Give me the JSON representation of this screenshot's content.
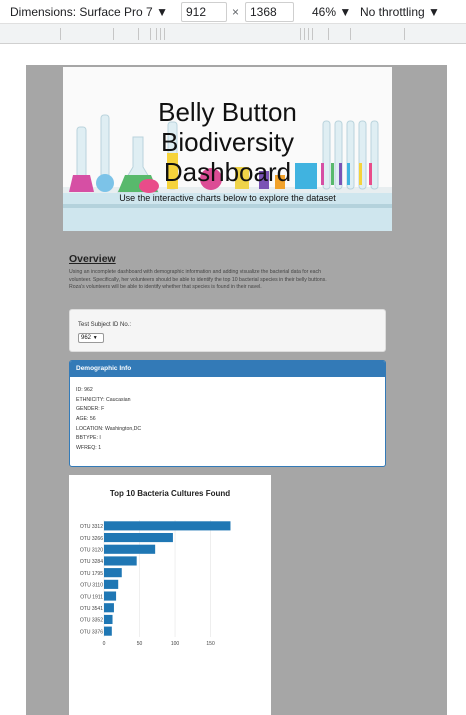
{
  "toolbar": {
    "dimensions_label": "Dimensions: Surface Pro 7 ▼",
    "width_value": "912",
    "times": "×",
    "height_value": "1368",
    "zoom_label": "46% ▼",
    "throttling_label": "No throttling ▼"
  },
  "page": {
    "hero": {
      "title_lines": [
        "Belly Button",
        "Biodiversity",
        "Dashboard"
      ],
      "subtitle": "Use the interactive charts below to explore the dataset"
    },
    "overview": {
      "heading": "Overview",
      "lines": [
        "Using an incomplete dashboard with demographic information and adding visualize the bacterial data for each",
        "volunteer. Specifically, her volunteers should be able to identify the top 10 bacterial species in their belly buttons.",
        "Roza's volunteers will be able to identify whether that species is found in their navel."
      ]
    },
    "selector": {
      "label": "Test Subject ID No.:",
      "selected": "962"
    },
    "demographic": {
      "header": "Demographic Info",
      "rows": [
        "ID: 962",
        "ETHNICITY: Caucasian",
        "GENDER: F",
        "AGE: 56",
        "LOCATION: Washington,DC",
        "BBTYPE: I",
        "WFREQ: 1"
      ]
    }
  },
  "colors": {
    "panel_blue": "#337ab7",
    "bar_blue": "#1f77b4",
    "device_gray": "#a6a6a6"
  },
  "chart_data": {
    "type": "bar",
    "orientation": "horizontal",
    "title": "Top 10 Bacteria Cultures Found",
    "categories": [
      "OTU 3312",
      "OTU 3266",
      "OTU 3120",
      "OTU 3284",
      "OTU 1795",
      "OTU 3110",
      "OTU 1911",
      "OTU 3541",
      "OTU 3352",
      "OTU 3376"
    ],
    "values": [
      178,
      97,
      72,
      46,
      25,
      20,
      17,
      14,
      12,
      11
    ],
    "xticks": [
      0,
      50,
      100,
      150
    ],
    "xlim": [
      0,
      190
    ],
    "xlabel": "",
    "ylabel": ""
  }
}
